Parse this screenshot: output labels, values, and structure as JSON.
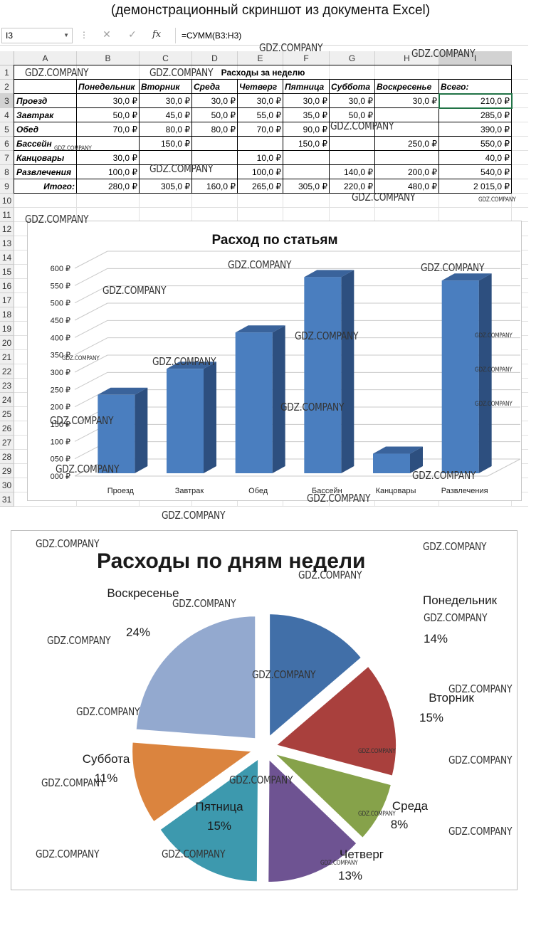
{
  "caption": "(демонстрационный скриншот из документа Excel)",
  "formula_bar": {
    "name_box": "I3",
    "fx": "fx",
    "formula": "=СУММ(B3:H3)"
  },
  "columns": [
    "A",
    "B",
    "C",
    "D",
    "E",
    "F",
    "G",
    "H",
    "I"
  ],
  "rows": [
    "1",
    "2",
    "3",
    "4",
    "5",
    "6",
    "7",
    "8",
    "9",
    "10",
    "11",
    "12",
    "13",
    "14",
    "15",
    "16",
    "17",
    "18",
    "19",
    "20",
    "21",
    "22",
    "23",
    "24",
    "25",
    "26",
    "27",
    "28",
    "29",
    "30",
    "31"
  ],
  "sheet": {
    "title": "Расходы за неделю",
    "headers": [
      "",
      "Понедельник",
      "Вторник",
      "Среда",
      "Четверг",
      "Пятница",
      "Суббота",
      "Воскресенье",
      "Всего:"
    ],
    "data_rows": [
      [
        "Проезд",
        "30,0 ₽",
        "30,0 ₽",
        "30,0 ₽",
        "30,0 ₽",
        "30,0 ₽",
        "30,0 ₽",
        "30,0 ₽",
        "210,0 ₽"
      ],
      [
        "Завтрак",
        "50,0 ₽",
        "45,0 ₽",
        "50,0 ₽",
        "55,0 ₽",
        "35,0 ₽",
        "50,0 ₽",
        "",
        "285,0 ₽"
      ],
      [
        "Обед",
        "70,0 ₽",
        "80,0 ₽",
        "80,0 ₽",
        "70,0 ₽",
        "90,0 ₽",
        "",
        "",
        "390,0 ₽"
      ],
      [
        "Бассейн",
        "",
        "150,0 ₽",
        "",
        "",
        "150,0 ₽",
        "",
        "250,0 ₽",
        "550,0 ₽"
      ],
      [
        "Канцовары",
        "30,0 ₽",
        "",
        "",
        "10,0 ₽",
        "",
        "",
        "",
        "40,0 ₽"
      ],
      [
        "Развлечения",
        "100,0 ₽",
        "",
        "",
        "100,0 ₽",
        "",
        "140,0 ₽",
        "200,0 ₽",
        "540,0 ₽"
      ],
      [
        "Итого:",
        "280,0 ₽",
        "305,0 ₽",
        "160,0 ₽",
        "265,0 ₽",
        "305,0 ₽",
        "220,0 ₽",
        "480,0 ₽",
        "2 015,0 ₽"
      ]
    ]
  },
  "watermark": "GDZ.COMPANY",
  "chart_data": [
    {
      "type": "bar",
      "title": "Расход по статьям",
      "categories": [
        "Проезд",
        "Завтрак",
        "Обед",
        "Бассейн",
        "Канцовары",
        "Развлечения"
      ],
      "values": [
        210,
        285,
        390,
        550,
        40,
        540
      ],
      "ylim": [
        0,
        600
      ],
      "yticks": [
        "000 ₽",
        "050 ₽",
        "100 ₽",
        "150 ₽",
        "200 ₽",
        "250 ₽",
        "300 ₽",
        "350 ₽",
        "400 ₽",
        "450 ₽",
        "500 ₽",
        "550 ₽",
        "600 ₽"
      ],
      "grid": true,
      "color": "#4a7ebf"
    },
    {
      "type": "pie",
      "title": "Расходы по дням недели",
      "labels": [
        "Понедельник",
        "Вторник",
        "Среда",
        "Четверг",
        "Пятница",
        "Суббота",
        "Воскресенье"
      ],
      "values": [
        280,
        305,
        160,
        265,
        305,
        220,
        480
      ],
      "percent_labels": [
        "14%",
        "15%",
        "8%",
        "13%",
        "15%",
        "11%",
        "24%"
      ],
      "colors": [
        "#416fa8",
        "#a9403d",
        "#86a24a",
        "#6e5392",
        "#3d99ae",
        "#db843e",
        "#93a9cf"
      ]
    }
  ]
}
